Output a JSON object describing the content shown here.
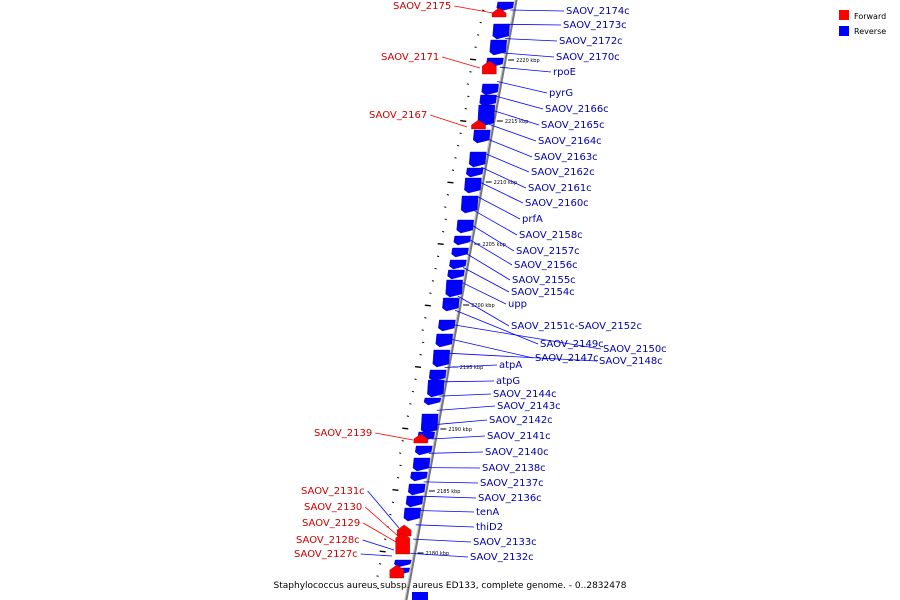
{
  "caption": "Staphylococcus aureus subsp. aureus ED133, complete genome. - 0..2832478",
  "colors": {
    "forward": "#ff0000",
    "reverse": "#0000ff",
    "forward_label": "#cc0000",
    "reverse_label": "#0000aa",
    "backbone": "#888888",
    "ticks": "#000000"
  },
  "legend": [
    {
      "label": "Forward",
      "strand": "forward"
    },
    {
      "label": "Reverse",
      "strand": "reverse"
    }
  ],
  "ticks": [
    "2220 kbp",
    "2215 kbp",
    "2210 kbp",
    "2205 kbp",
    "2200 kbp",
    "2195 kbp",
    "2190 kbp",
    "2185 kbp",
    "2180 kbp"
  ],
  "forward_genes": [
    "SAOV_2175",
    "SAOV_2171",
    "SAOV_2167",
    "SAOV_2139",
    "SAOV_2131c",
    "SAOV_2130",
    "SAOV_2129",
    "SAOV_2128c",
    "SAOV_2127c"
  ],
  "reverse_genes": [
    "SAOV_2174c",
    "SAOV_2173c",
    "SAOV_2172c",
    "SAOV_2170c",
    "rpoE",
    "pyrG",
    "SAOV_2166c",
    "SAOV_2165c",
    "SAOV_2164c",
    "SAOV_2163c",
    "SAOV_2162c",
    "SAOV_2161c",
    "SAOV_2160c",
    "prfA",
    "SAOV_2158c",
    "SAOV_2157c",
    "SAOV_2156c",
    "SAOV_2155c",
    "SAOV_2154c",
    "upp",
    "SAOV_2151c-SAOV_2152c",
    "SAOV_2149c",
    "SAOV_2150c",
    "SAOV_2147c",
    "SAOV_2148c",
    "atpA",
    "atpG",
    "SAOV_2144c",
    "SAOV_2143c",
    "SAOV_2142c",
    "SAOV_2141c",
    "SAOV_2140c",
    "SAOV_2138c",
    "SAOV_2137c",
    "SAOV_2136c",
    "tenA",
    "thiD2",
    "SAOV_2133c",
    "SAOV_2132c"
  ]
}
